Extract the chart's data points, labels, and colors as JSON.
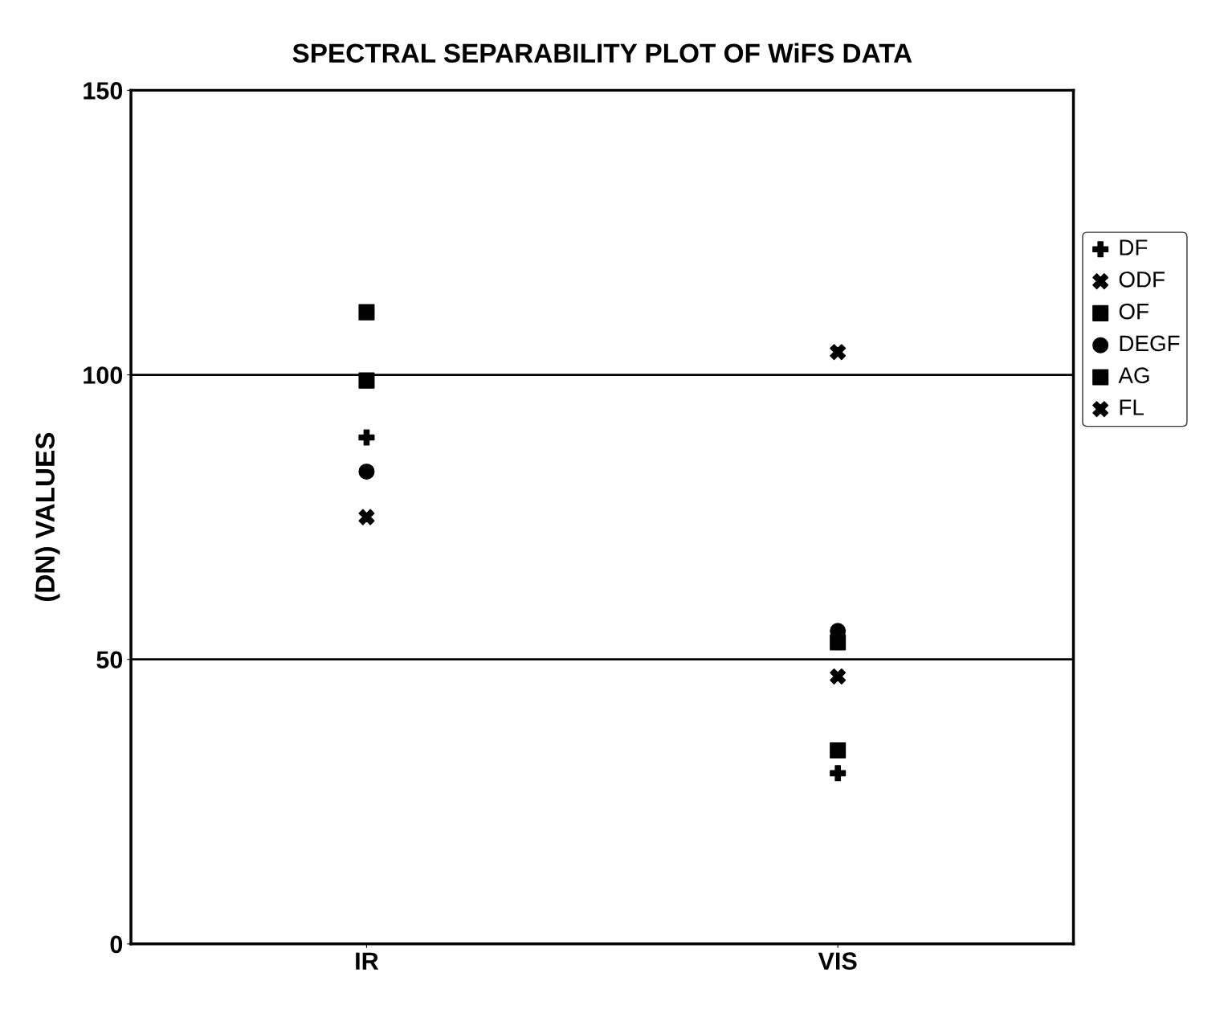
{
  "chart_data": {
    "type": "scatter",
    "title": "SPECTRAL SEPARABILITY PLOT OF WiFS DATA",
    "ylabel": "(DN) VALUES",
    "categories": [
      "IR",
      "VIS"
    ],
    "ylim": [
      0,
      150
    ],
    "yticks": [
      0,
      50,
      100,
      150
    ],
    "grid": "y",
    "legend": "right",
    "series": [
      {
        "name": "DF",
        "color": "#000000",
        "marker": "plus",
        "values": [
          89,
          30
        ]
      },
      {
        "name": "ODF",
        "color": "#000000",
        "marker": "x",
        "values": [
          75,
          47
        ]
      },
      {
        "name": "OF",
        "color": "#000000",
        "marker": "square",
        "values": [
          111,
          34
        ]
      },
      {
        "name": "DEGF",
        "color": "#000000",
        "marker": "circle",
        "values": [
          83,
          55
        ]
      },
      {
        "name": "AG",
        "color": "#000000",
        "marker": "square",
        "values": [
          99,
          53
        ]
      },
      {
        "name": "FL",
        "color": "#000000",
        "marker": "x",
        "values": [
          null,
          104
        ]
      }
    ]
  }
}
